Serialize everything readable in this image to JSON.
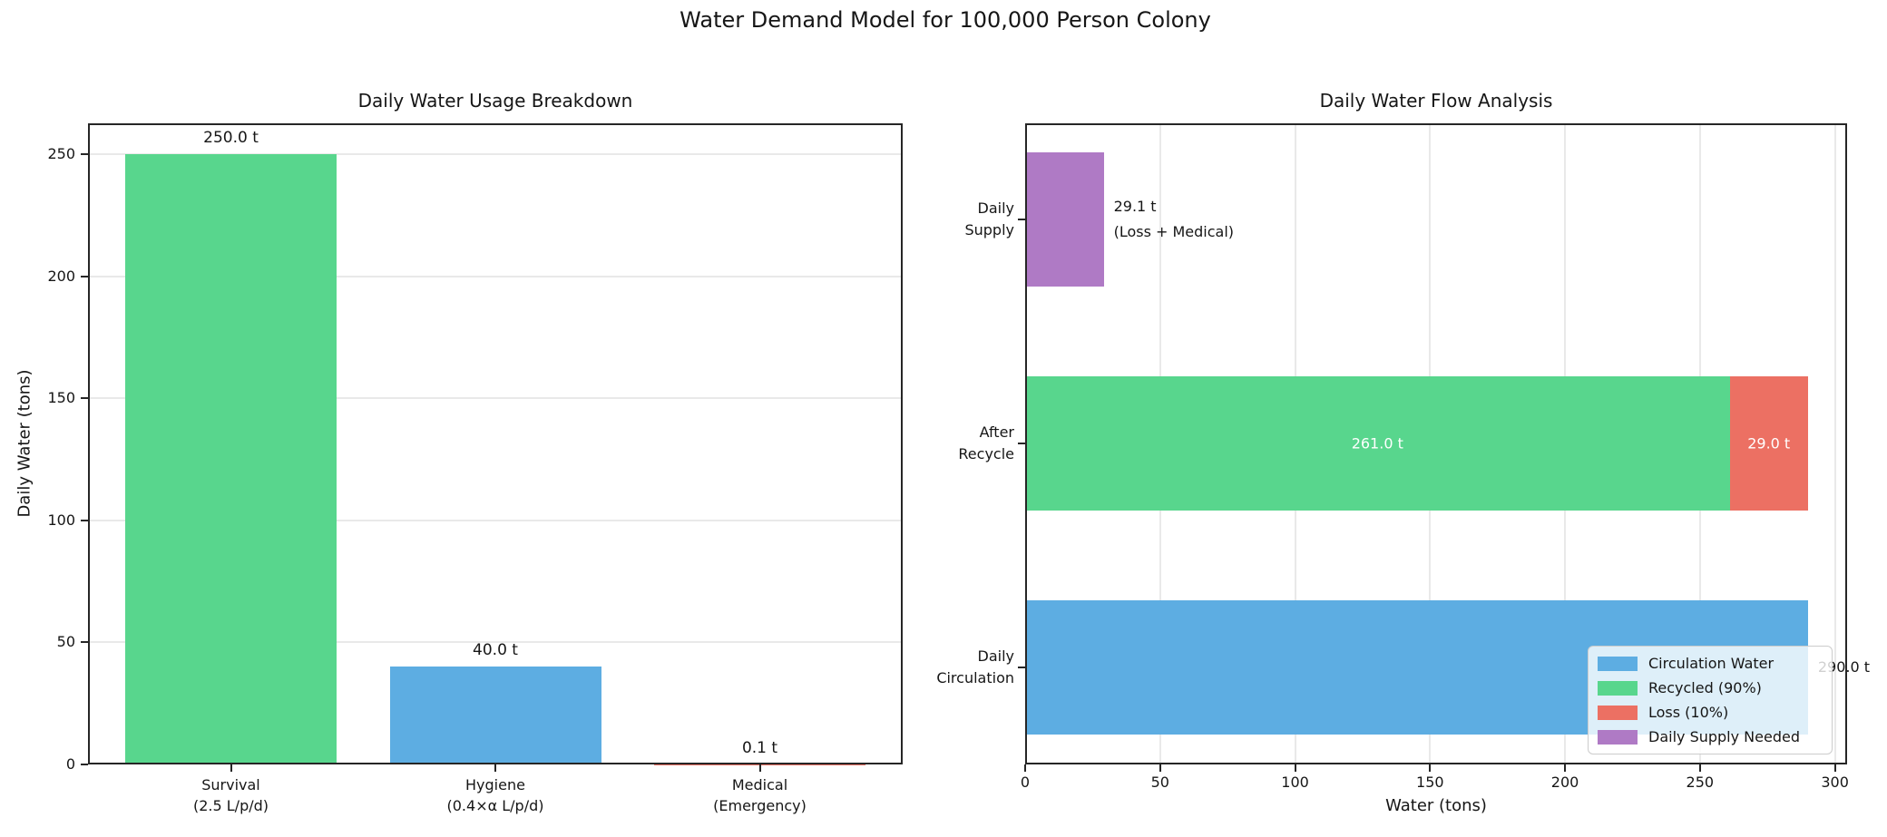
{
  "figure": {
    "suptitle": "Water Demand Model for 100,000 Person Colony",
    "background": "#ffffff",
    "text_color": "#161616",
    "spine_color": "#262626",
    "grid_color": "#e9e9e9"
  },
  "chart_data": [
    {
      "type": "bar",
      "title": "Daily Water Usage Breakdown",
      "xlabel": "",
      "ylabel": "Daily Water (tons)",
      "categories": [
        "Survival\n(2.5 L/p/d)",
        "Hygiene\n(0.4×α L/p/d)",
        "Medical\n(Emergency)"
      ],
      "values": [
        250.0,
        40.0,
        0.1
      ],
      "bar_labels": [
        "250.0 t",
        "40.0 t",
        "0.1 t"
      ],
      "bar_colors": [
        "#58d68d",
        "#5dade2",
        "#ec7063"
      ],
      "yticks": [
        0,
        50,
        100,
        150,
        200,
        250
      ],
      "ylim": [
        0,
        262.6
      ],
      "grid": "horizontal"
    },
    {
      "type": "barh",
      "title": "Daily Water Flow Analysis",
      "xlabel": "Water (tons)",
      "ylabel": "",
      "categories": [
        "Daily\nSupply",
        "After\nRecycle",
        "Daily\nCirculation"
      ],
      "rows": [
        {
          "category": "Daily\nSupply",
          "segments": [
            {
              "series": "Daily Supply Needed",
              "value": 29.1,
              "color": "#af7ac5"
            }
          ],
          "outside_label": "29.1 t\n(Loss + Medical)"
        },
        {
          "category": "After\nRecycle",
          "segments": [
            {
              "series": "Recycled (90%)",
              "value": 261.0,
              "color": "#58d68d",
              "inside_label": "261.0 t"
            },
            {
              "series": "Loss (10%)",
              "value": 29.0,
              "color": "#ec7063",
              "inside_label": "29.0 t"
            }
          ]
        },
        {
          "category": "Daily\nCirculation",
          "segments": [
            {
              "series": "Circulation Water",
              "value": 290.0,
              "color": "#5dade2"
            }
          ],
          "outside_label": "290.0 t"
        }
      ],
      "xticks": [
        0,
        50,
        100,
        150,
        200,
        250,
        300
      ],
      "xlim": [
        0,
        304.5
      ],
      "grid": "vertical",
      "legend": {
        "position": "lower-right",
        "entries": [
          {
            "label": "Circulation Water",
            "color": "#5dade2"
          },
          {
            "label": "Recycled (90%)",
            "color": "#58d68d"
          },
          {
            "label": "Loss (10%)",
            "color": "#ec7063"
          },
          {
            "label": "Daily Supply Needed",
            "color": "#af7ac5"
          }
        ]
      }
    }
  ]
}
